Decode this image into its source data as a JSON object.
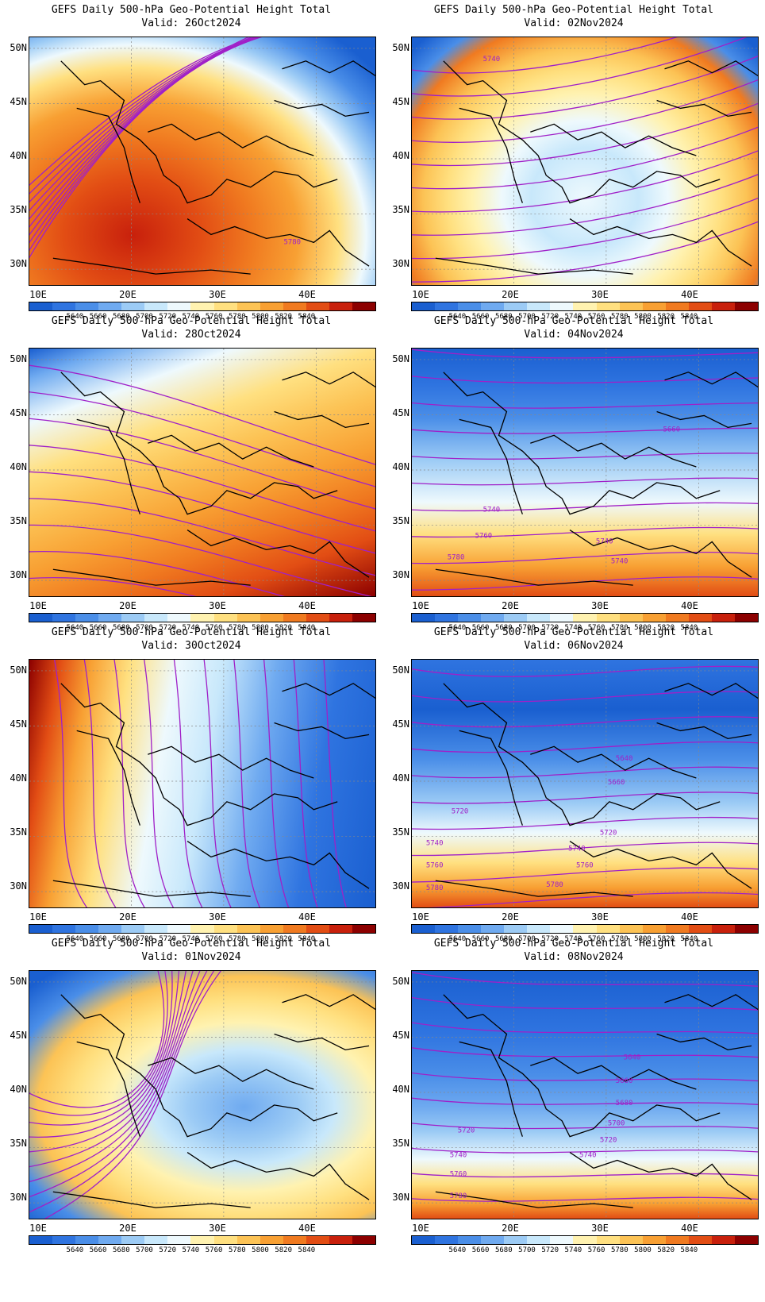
{
  "title_line1": "GEFS Daily 500-hPa Geo-Potential Height Total",
  "lat_ticks": [
    "50N",
    "45N",
    "40N",
    "35N",
    "30N"
  ],
  "lon_ticks": [
    "10E",
    "20E",
    "30E",
    "40E"
  ],
  "colorbar": {
    "levels": [
      "5640",
      "5660",
      "5680",
      "5700",
      "5720",
      "5740",
      "5760",
      "5780",
      "5800",
      "5820",
      "5840"
    ],
    "colors": [
      "#1a5fd0",
      "#2f74e0",
      "#4a8ee8",
      "#6faaf0",
      "#9ccbf5",
      "#c8e8fb",
      "#eef9fd",
      "#fff2b0",
      "#ffe080",
      "#fcc355",
      "#f8a033",
      "#f07a20",
      "#e24d14",
      "#c8200c",
      "#8c0000"
    ]
  },
  "panels": [
    {
      "valid": "Valid: 26Oct2024",
      "labels": [
        "5780"
      ]
    },
    {
      "valid": "Valid: 02Nov2024",
      "labels": [
        "5740"
      ]
    },
    {
      "valid": "Valid: 28Oct2024",
      "labels": []
    },
    {
      "valid": "Valid: 04Nov2024",
      "labels": [
        "5660",
        "5740",
        "5740",
        "5760",
        "5780",
        "5740"
      ]
    },
    {
      "valid": "Valid: 30Oct2024",
      "labels": []
    },
    {
      "valid": "Valid: 06Nov2024",
      "labels": [
        "5640",
        "5660",
        "5720",
        "5720",
        "5740",
        "5740",
        "5760",
        "5760",
        "5780",
        "5780"
      ]
    },
    {
      "valid": "Valid: 01Nov2024",
      "labels": []
    },
    {
      "valid": "Valid: 08Nov2024",
      "labels": [
        "5640",
        "5660",
        "5680",
        "5700",
        "5720",
        "5720",
        "5740",
        "5740",
        "5760",
        "5780"
      ]
    }
  ]
}
